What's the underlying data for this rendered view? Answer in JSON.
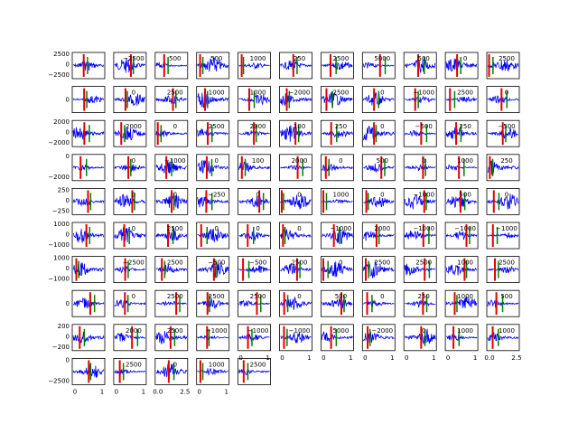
{
  "chart_data": {
    "type": "line",
    "layout": {
      "rows": 10,
      "cols": 11,
      "panels_shown": 104
    },
    "colors": {
      "signal": "#0000ff",
      "marker_red": "#e00000",
      "marker_green": "#008000",
      "axes": "#000000"
    },
    "left_column_yticks": [
      [
        "2500",
        "0",
        "−2500"
      ],
      [
        "0"
      ],
      [
        "2000",
        "0",
        "−2000"
      ],
      [
        "0",
        "−2000"
      ],
      [
        "250",
        "0",
        "−250"
      ],
      [
        "1000",
        "0",
        "−1000"
      ],
      [
        "1000",
        "0",
        "−1000"
      ],
      [
        "0"
      ],
      [
        "200",
        "0",
        "−200"
      ],
      [
        "0",
        "−2500"
      ]
    ],
    "inner_ytick_samples": [
      "−2500",
      "500",
      "500",
      "1000",
      "250",
      "2500",
      "5000",
      "500",
      "0",
      "2500",
      "0",
      "2500",
      "1000",
      "1000",
      "−2000",
      "2500",
      "0",
      "−1000",
      "2500",
      "0",
      "2000",
      "0",
      "2500",
      "2000",
      "100",
      "250",
      "0",
      "−500",
      "250",
      "−500",
      "0",
      "−1000",
      "0",
      "100",
      "2000",
      "0",
      "500",
      "0",
      "1000",
      "250",
      "0",
      "0",
      "−250",
      "0",
      "0",
      "1000",
      "0",
      "−1000",
      "500",
      "0",
      "0",
      "2500",
      "0",
      "0",
      "0",
      "−1000",
      "2000",
      "−1000",
      "−1000",
      "−1000",
      "−2500",
      "2500",
      "−500",
      "−500",
      "2500",
      "0",
      "2500",
      "2500",
      "1000",
      "2500",
      "0",
      "2500",
      "2500",
      "2500",
      "0",
      "500",
      "0",
      "250",
      "1000",
      "500",
      "2000",
      "2500",
      "−1000",
      "−1000",
      "−1000",
      "5000",
      "−2000",
      "0",
      "1000",
      "1000",
      "2500",
      "0",
      "1000",
      "2500",
      "2500",
      "2000",
      "1000",
      "2000",
      "0",
      "1000",
      "2500",
      "2500",
      "0"
    ],
    "xticks_bottom": [
      "0",
      "1",
      "0",
      "1",
      "0.0",
      "2.5",
      "0",
      "1",
      "0",
      "1",
      "0",
      "1",
      "0",
      "1",
      "0",
      "1"
    ],
    "panel_markers_seed": 7,
    "title": "",
    "xlabel": "",
    "ylabel": ""
  }
}
